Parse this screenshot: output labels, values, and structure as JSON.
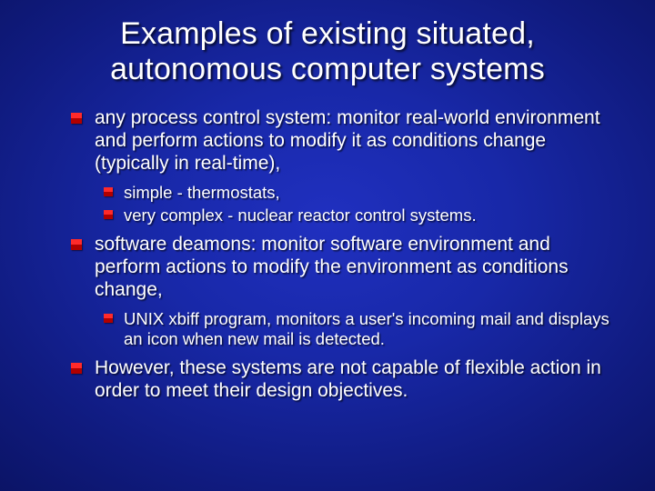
{
  "title_line1": "Examples of existing situated,",
  "title_line2": "autonomous computer systems",
  "items": {
    "i0": "any process control system: monitor real-world environment and perform actions to modify it as conditions change (typically in real-time),",
    "i0s0": "simple - thermostats,",
    "i0s1": "very complex - nuclear reactor control systems.",
    "i1": "software deamons: monitor software environment and perform actions to modify the environment as conditions change,",
    "i1s0": "UNIX xbiff program, monitors a user's incoming mail and displays an icon when new mail is detected.",
    "i2": "However, these systems are not capable of flexible action in order to meet their design objectives."
  },
  "colors": {
    "text": "#ffffff",
    "bullet_top": "#ff2a2a",
    "bullet_bottom": "#b00000",
    "bg_center": "#2030c0",
    "bg_edge": "#050a40"
  },
  "fonts": {
    "title_size_pt": 26,
    "body_size_pt": 16,
    "sub_size_pt": 14,
    "family": "Arial"
  }
}
